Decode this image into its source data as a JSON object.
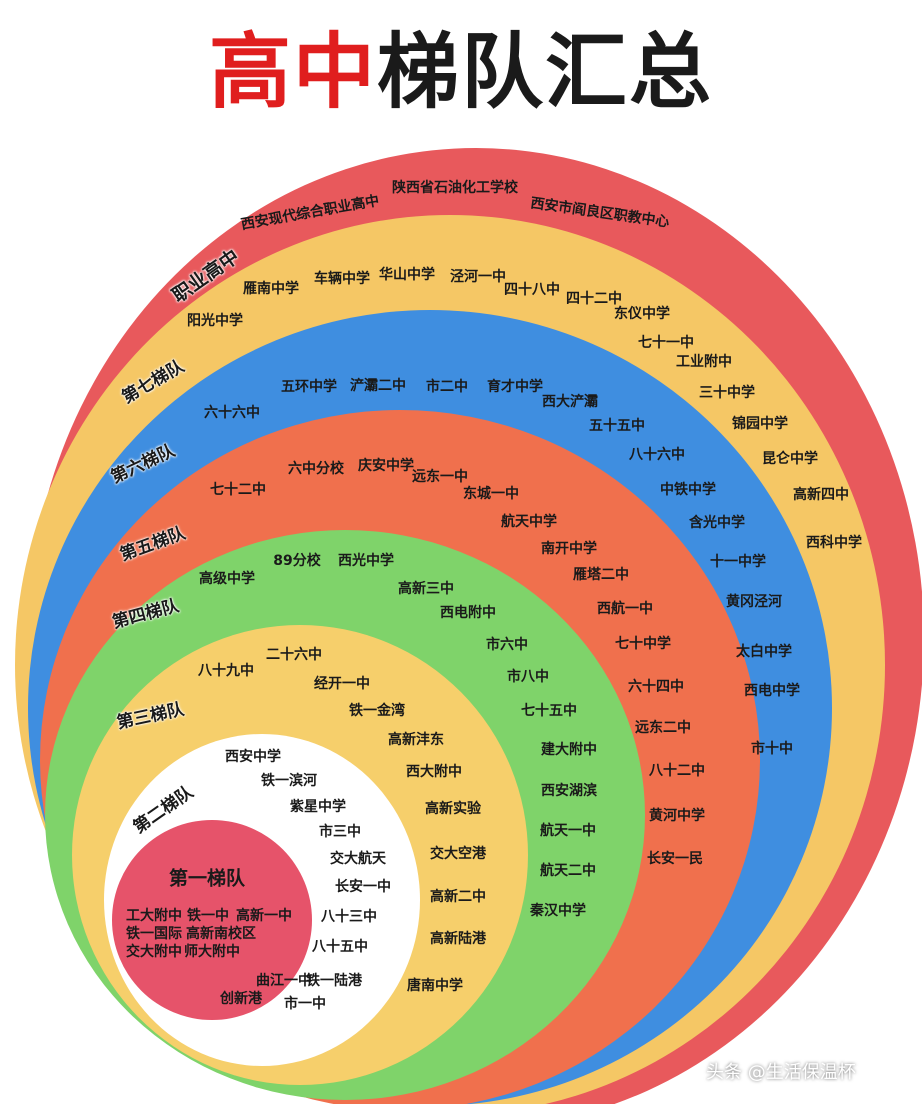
{
  "title": {
    "part1": "高中",
    "part2": "梯队汇总"
  },
  "colors": {
    "vocational": "#e8595c",
    "tier7": "#f5c765",
    "tier6": "#3f8ee0",
    "tier5": "#f0704d",
    "tier4": "#7fd36a",
    "tier3": "#f6cf6b",
    "tier2": "#ffffff",
    "tier1": "#e6536a",
    "title_red": "#e01e1e"
  },
  "tiers": {
    "vocational": {
      "label": "职业高中",
      "schools": [
        "西安现代综合职业高中",
        "陕西省石油化工学校",
        "西安市阎良区职教中心"
      ]
    },
    "tier7": {
      "label": "第七梯队",
      "schools": [
        "阳光中学",
        "雁南中学",
        "车辆中学",
        "华山中学",
        "泾河一中",
        "四十八中",
        "四十二中",
        "东仪中学",
        "七十一中",
        "工业附中",
        "三十中学",
        "锦园中学",
        "昆仑中学",
        "高新四中",
        "西科中学"
      ]
    },
    "tier6": {
      "label": "第六梯队",
      "schools": [
        "六十六中",
        "五环中学",
        "浐灞二中",
        "市二中",
        "育才中学",
        "西大浐灞",
        "五十五中",
        "八十六中",
        "中铁中学",
        "含光中学",
        "十一中学",
        "黄冈泾河",
        "太白中学",
        "西电中学",
        "市十中"
      ]
    },
    "tier5": {
      "label": "第五梯队",
      "schools": [
        "七十二中",
        "六中分校",
        "庆安中学",
        "远东一中",
        "东城一中",
        "航天中学",
        "南开中学",
        "雁塔二中",
        "西航一中",
        "七十中学",
        "六十四中",
        "远东二中",
        "八十二中",
        "黄河中学",
        "长安一民"
      ]
    },
    "tier4": {
      "label": "第四梯队",
      "schools": [
        "高级中学",
        "89分校",
        "西光中学",
        "高新三中",
        "西电附中",
        "市六中",
        "市八中",
        "七十五中",
        "建大附中",
        "西安湖滨",
        "航天一中",
        "航天二中",
        "秦汉中学"
      ]
    },
    "tier3": {
      "label": "第三梯队",
      "schools": [
        "八十九中",
        "二十六中",
        "经开一中",
        "铁一金湾",
        "高新沣东",
        "西大附中",
        "高新实验",
        "交大空港",
        "高新二中",
        "高新陆港",
        "唐南中学"
      ]
    },
    "tier2": {
      "label": "第二梯队",
      "schools": [
        "西安中学",
        "铁一滨河",
        "紫星中学",
        "市三中",
        "交大航天",
        "长安一中",
        "八十三中",
        "八十五中",
        "曲江一中",
        "铁一陆港",
        "创新港",
        "市一中"
      ]
    },
    "tier1": {
      "label": "第一梯队",
      "schools": [
        "工大附中",
        "铁一中",
        "高新一中",
        "铁一国际",
        "高新南校区",
        "交大附中",
        "师大附中"
      ]
    }
  },
  "watermark": "头条 @生活保温杯"
}
